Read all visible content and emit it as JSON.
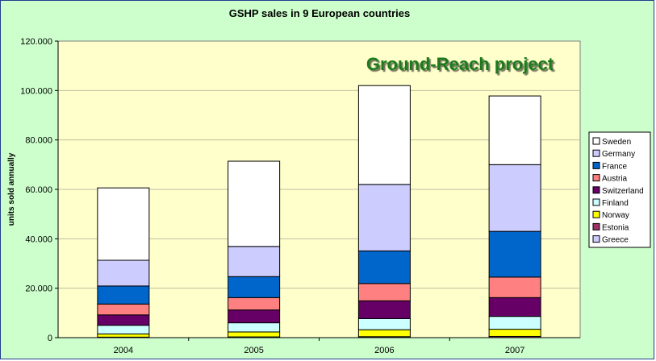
{
  "chart_data": {
    "type": "bar",
    "stacked": true,
    "title": "GSHP sales in 9 European countries",
    "annotation": "Ground-Reach project",
    "xlabel": "",
    "ylabel": "units sold annually",
    "categories": [
      "2004",
      "2005",
      "2006",
      "2007"
    ],
    "ylim": [
      0,
      120000
    ],
    "yticks": [
      "0",
      "20.000",
      "40.000",
      "60.000",
      "80.000",
      "100.000",
      "120.000"
    ],
    "grid": true,
    "legend_position": "right",
    "series": [
      {
        "name": "Greece",
        "color": "#ccccff",
        "values": [
          0,
          0,
          0,
          0
        ]
      },
      {
        "name": "Estonia",
        "color": "#993366",
        "values": [
          200,
          300,
          400,
          500
        ]
      },
      {
        "name": "Norway",
        "color": "#ffff00",
        "values": [
          1300,
          2000,
          2800,
          2900
        ]
      },
      {
        "name": "Finland",
        "color": "#ccffff",
        "values": [
          3500,
          3700,
          4500,
          5200
        ]
      },
      {
        "name": "Switzerland",
        "color": "#660066",
        "values": [
          4200,
          5200,
          7200,
          7600
        ]
      },
      {
        "name": "Austria",
        "color": "#ff8080",
        "values": [
          4400,
          5000,
          7000,
          8300
        ]
      },
      {
        "name": "France",
        "color": "#0066cc",
        "values": [
          7300,
          8500,
          13200,
          18500
        ]
      },
      {
        "name": "Germany",
        "color": "#ccccff",
        "values": [
          10400,
          12200,
          26900,
          27000
        ]
      },
      {
        "name": "Sweden",
        "color": "#ffffff",
        "values": [
          29300,
          34500,
          40000,
          27800
        ]
      }
    ],
    "legend_order": [
      "Sweden",
      "Germany",
      "France",
      "Austria",
      "Switzerland",
      "Finland",
      "Norway",
      "Estonia",
      "Greece"
    ],
    "colors": {
      "frame_bg": "#ccffcc",
      "plot_bg": "#ffffcc",
      "annotation": "#1a7a1a"
    }
  }
}
